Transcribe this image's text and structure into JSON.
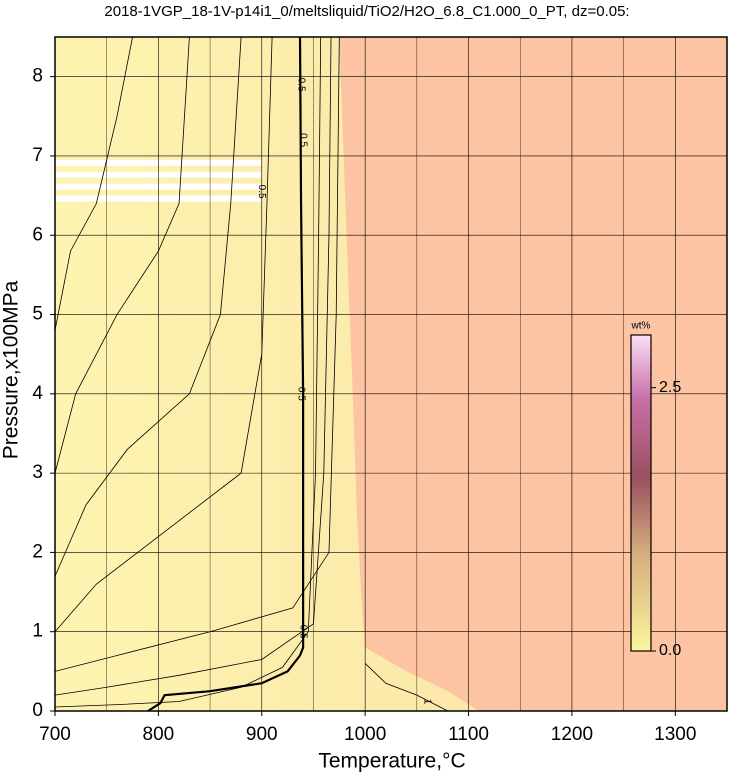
{
  "chart_data": {
    "type": "contour",
    "title": "2018-1VGP_18-1V-p14i1_0/meltsliquid/TiO2/H2O_6.8_C1.000_0_PT, dz=0.05:",
    "x_label": "Temperature,°C",
    "y_label": "Pressure,x100MPa",
    "xlim": [
      700,
      1350
    ],
    "ylim": [
      0,
      8.5
    ],
    "xticks": [
      700,
      800,
      900,
      1000,
      1100,
      1200,
      1300
    ],
    "yticks": [
      0,
      1,
      2,
      3,
      4,
      5,
      6,
      7,
      8
    ],
    "xminor": [
      750,
      850,
      950,
      1050,
      1150,
      1250
    ],
    "grid": true,
    "boundary": {
      "x": [
        975,
        982,
        988,
        992,
        996,
        1000,
        1040,
        1080,
        1110
      ],
      "y": [
        8.5,
        6,
        4,
        2.5,
        1.5,
        0.8,
        0.5,
        0.25,
        0
      ]
    },
    "contours": [
      {
        "level": 0.5,
        "x": [
          790,
          802,
          806,
          850,
          900,
          925,
          937,
          940,
          940,
          938,
          937
        ],
        "y": [
          0,
          0.1,
          0.2,
          0.25,
          0.35,
          0.5,
          0.7,
          0.8,
          4,
          6.4,
          8.5
        ]
      },
      {
        "x": [
          700,
          760,
          820,
          880,
          920,
          945,
          952,
          955,
          957
        ],
        "y": [
          0.05,
          0.08,
          0.12,
          0.3,
          0.55,
          1,
          3,
          6,
          8.5
        ]
      },
      {
        "x": [
          700,
          750,
          820,
          900,
          950,
          960,
          965,
          967
        ],
        "y": [
          0.2,
          0.3,
          0.45,
          0.65,
          1.1,
          3,
          6,
          8.5
        ]
      },
      {
        "x": [
          700,
          760,
          850,
          930,
          965,
          972,
          975
        ],
        "y": [
          0.5,
          0.7,
          1,
          1.3,
          2,
          5,
          8.5
        ]
      },
      {
        "x": [
          700,
          740,
          800,
          880,
          900,
          905,
          910
        ],
        "y": [
          1,
          1.6,
          2.2,
          3,
          4.5,
          6.4,
          8.5
        ]
      },
      {
        "x": [
          700,
          730,
          770,
          830,
          860,
          870,
          880
        ],
        "y": [
          1.7,
          2.6,
          3.3,
          4,
          5,
          6.4,
          8.5
        ]
      },
      {
        "x": [
          700,
          720,
          760,
          800,
          820,
          830
        ],
        "y": [
          3,
          4,
          5,
          5.8,
          6.4,
          8.5
        ]
      },
      {
        "x": [
          700,
          715,
          740,
          760,
          775
        ],
        "y": [
          4.8,
          5.8,
          6.4,
          7.5,
          8.5
        ]
      },
      {
        "x": [
          1000,
          1020,
          1050,
          1080
        ],
        "y": [
          0.6,
          0.35,
          0.2,
          0
        ]
      }
    ],
    "contour_labels": [
      {
        "text": "0.5",
        "x": 938,
        "y": 7.9
      },
      {
        "text": "0.5",
        "x": 940,
        "y": 7.2
      },
      {
        "text": "0.5",
        "x": 938,
        "y": 4
      },
      {
        "text": "0.5",
        "x": 940,
        "y": 1
      },
      {
        "text": "0.5",
        "x": 900,
        "y": 6.55
      },
      {
        "text": "1",
        "x": 1060,
        "y": 0.12
      }
    ],
    "colorbar": {
      "label": "wt%",
      "clim": [
        0,
        3
      ],
      "ticks": [
        {
          "value": 0,
          "label": "0.0"
        },
        2.5
      ]
    }
  }
}
